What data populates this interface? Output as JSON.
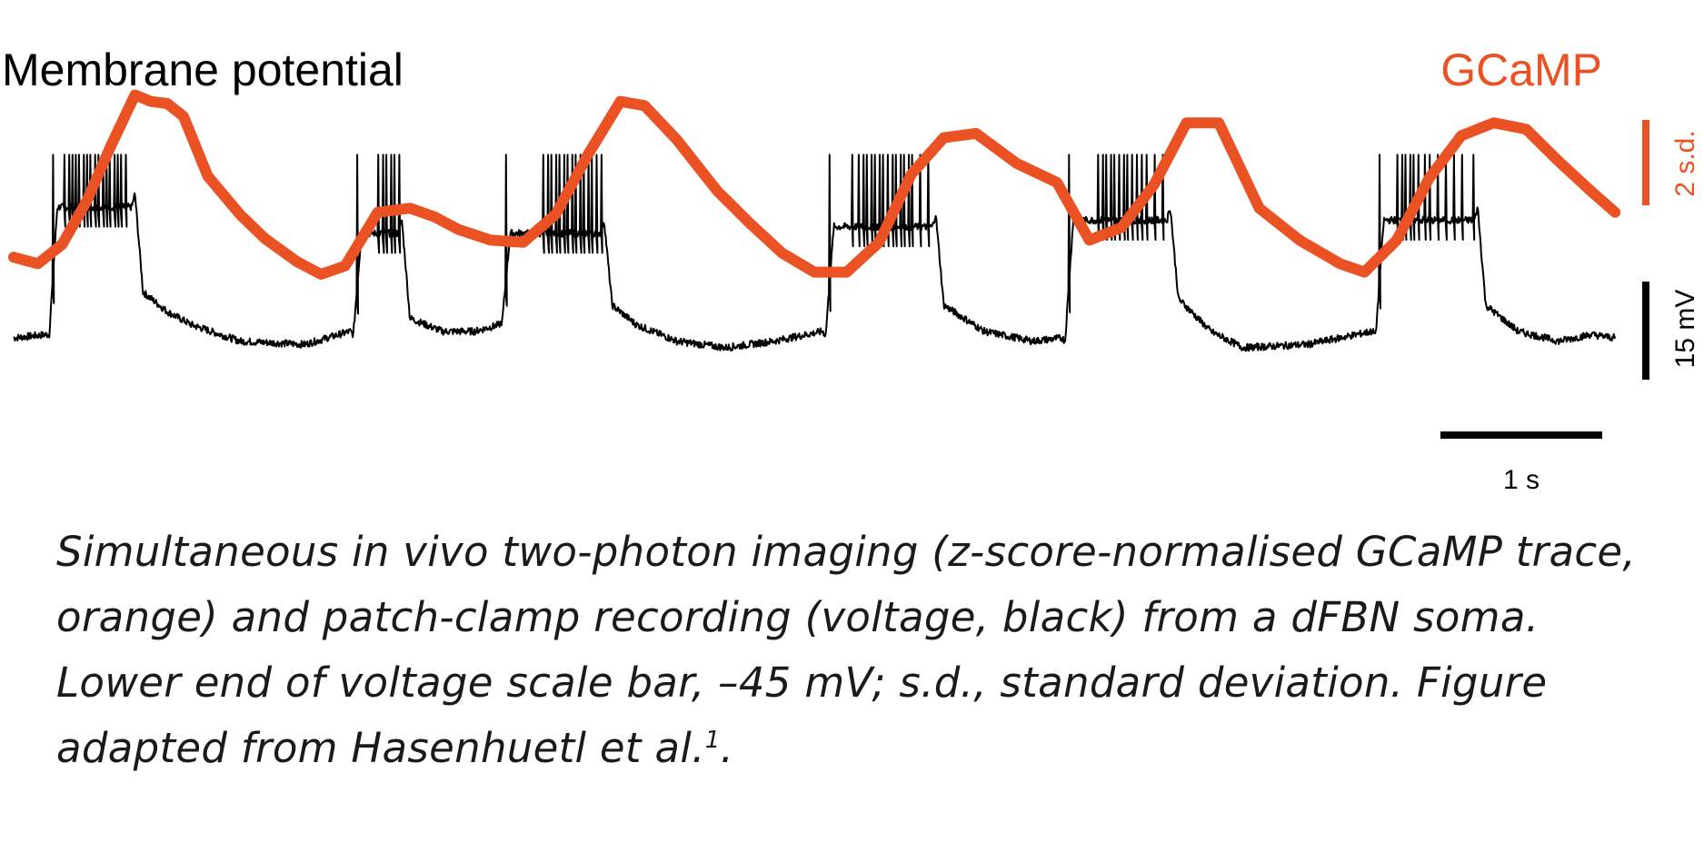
{
  "colors": {
    "voltage": "#000000",
    "gcamp": "#ea5224",
    "text": "#1a1a1a"
  },
  "chart_data": {
    "type": "line",
    "labels": {
      "left": "Membrane potential",
      "right": "GCaMP"
    },
    "scale_bars": {
      "gcamp": {
        "label": "2 s.d.",
        "value": 2,
        "unit": "s.d."
      },
      "voltage": {
        "label": "15 mV",
        "value": 15,
        "unit": "mV"
      },
      "time": {
        "label": "1 s",
        "value": 1,
        "unit": "s"
      }
    },
    "x_range_s": [
      0,
      9.9
    ],
    "series": [
      {
        "name": "GCaMP",
        "unit": "z-score",
        "color": "#ea5224",
        "x": [
          0.0,
          0.15,
          0.3,
          0.45,
          0.6,
          0.75,
          0.85,
          0.95,
          1.05,
          1.2,
          1.4,
          1.55,
          1.75,
          1.9,
          2.05,
          2.25,
          2.45,
          2.6,
          2.75,
          2.95,
          3.15,
          3.35,
          3.55,
          3.75,
          3.9,
          4.1,
          4.35,
          4.55,
          4.75,
          4.95,
          5.15,
          5.35,
          5.55,
          5.75,
          5.95,
          6.2,
          6.45,
          6.65,
          6.85,
          7.05,
          7.25,
          7.45,
          7.7,
          7.95,
          8.2,
          8.35,
          8.55,
          8.75,
          8.95,
          9.15,
          9.35,
          9.55,
          9.75,
          9.9
        ],
        "y": [
          -0.6,
          -0.75,
          -0.3,
          0.7,
          2.0,
          3.2,
          3.05,
          3.0,
          2.7,
          1.3,
          0.4,
          -0.15,
          -0.7,
          -1.0,
          -0.8,
          0.45,
          0.55,
          0.35,
          0.05,
          -0.2,
          -0.25,
          0.4,
          1.8,
          3.05,
          2.95,
          2.15,
          0.95,
          0.2,
          -0.5,
          -0.95,
          -0.95,
          -0.25,
          1.35,
          2.2,
          2.3,
          1.6,
          1.15,
          -0.2,
          0.1,
          1.1,
          2.55,
          2.55,
          0.55,
          -0.2,
          -0.75,
          -0.95,
          -0.2,
          1.25,
          2.25,
          2.55,
          2.4,
          1.65,
          0.95,
          0.45
        ]
      },
      {
        "name": "Voltage",
        "unit": "mV",
        "color": "#000000",
        "baseline_mV": -45,
        "spike_peak_mV": -17,
        "bursts": [
          {
            "start_s": 0.22,
            "end_s": 0.75,
            "trough_mV": -44.5,
            "plateau_mV": -25,
            "spikes_s": [
              0.24,
              0.31,
              0.34,
              0.36,
              0.38,
              0.4,
              0.43,
              0.45,
              0.47,
              0.5,
              0.52,
              0.55,
              0.57,
              0.59,
              0.62,
              0.64,
              0.66,
              0.69
            ]
          },
          {
            "start_s": 2.1,
            "end_s": 2.4,
            "trough_mV": -44.5,
            "plateau_mV": -29,
            "spikes_s": [
              2.12,
              2.25,
              2.28,
              2.3,
              2.33,
              2.35,
              2.38
            ]
          },
          {
            "start_s": 3.02,
            "end_s": 3.65,
            "trough_mV": -42.5,
            "plateau_mV": -29,
            "spikes_s": [
              3.04,
              3.27,
              3.3,
              3.32,
              3.35,
              3.37,
              3.4,
              3.42,
              3.45,
              3.47,
              3.5,
              3.52,
              3.55,
              3.57,
              3.6,
              3.63
            ]
          },
          {
            "start_s": 5.02,
            "end_s": 5.7,
            "trough_mV": -44.5,
            "plateau_mV": -28,
            "spikes_s": [
              5.04,
              5.18,
              5.22,
              5.25,
              5.27,
              5.3,
              5.32,
              5.35,
              5.37,
              5.4,
              5.43,
              5.45,
              5.48,
              5.5,
              5.53,
              5.55,
              5.6,
              5.65
            ]
          },
          {
            "start_s": 6.5,
            "end_s": 7.15,
            "trough_mV": -45.5,
            "plateau_mV": -27,
            "spikes_s": [
              6.52,
              6.7,
              6.73,
              6.75,
              6.78,
              6.8,
              6.83,
              6.86,
              6.88,
              6.91,
              6.94,
              6.97,
              7.0,
              7.05,
              7.1
            ]
          },
          {
            "start_s": 8.42,
            "end_s": 9.05,
            "trough_mV": -44.5,
            "plateau_mV": -27,
            "spikes_s": [
              8.44,
              8.55,
              8.58,
              8.6,
              8.63,
              8.65,
              8.68,
              8.72,
              8.75,
              8.8,
              8.85,
              8.9,
              8.95,
              9.02
            ]
          }
        ],
        "interburst_points": [
          [
            0.0,
            -45
          ],
          [
            0.2,
            -44.5
          ],
          [
            0.8,
            -38
          ],
          [
            0.95,
            -41
          ],
          [
            1.1,
            -43
          ],
          [
            1.4,
            -45.5
          ],
          [
            1.8,
            -46
          ],
          [
            2.08,
            -44
          ],
          [
            2.45,
            -42
          ],
          [
            2.65,
            -44
          ],
          [
            2.85,
            -44
          ],
          [
            3.0,
            -43
          ],
          [
            3.7,
            -40
          ],
          [
            3.85,
            -43
          ],
          [
            4.1,
            -45.5
          ],
          [
            4.4,
            -46.5
          ],
          [
            4.7,
            -45.5
          ],
          [
            5.0,
            -44
          ],
          [
            5.75,
            -40
          ],
          [
            6.0,
            -44
          ],
          [
            6.3,
            -45.5
          ],
          [
            6.48,
            -45
          ],
          [
            7.2,
            -39
          ],
          [
            7.4,
            -44
          ],
          [
            7.6,
            -46.5
          ],
          [
            8.0,
            -46
          ],
          [
            8.4,
            -44
          ],
          [
            9.1,
            -40
          ],
          [
            9.3,
            -44
          ],
          [
            9.55,
            -45.5
          ],
          [
            9.75,
            -44.5
          ],
          [
            9.9,
            -45
          ]
        ]
      }
    ]
  },
  "caption": {
    "text": "Simultaneous in vivo two-photon imaging (z-score-normalised GCaMP trace, orange) and patch-clamp recording (voltage, black) from a dFBN soma. Lower end of voltage scale bar, –45 mV; s.d., standard deviation. Figure adapted from Hasenhuetl et al.",
    "superscript": "1",
    "end": "."
  }
}
